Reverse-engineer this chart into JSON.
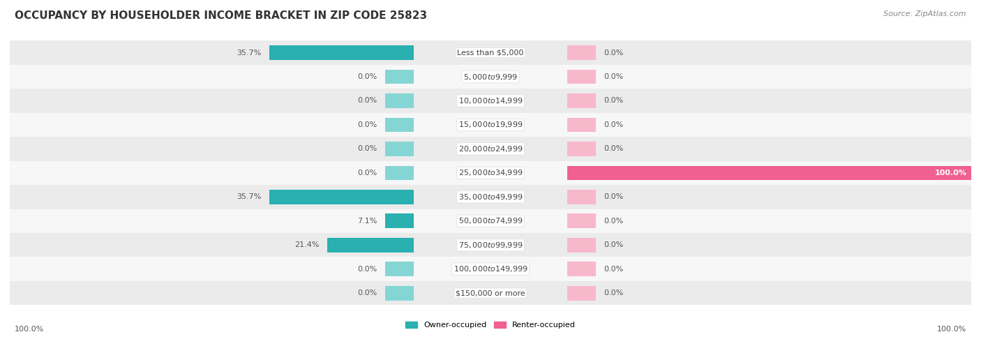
{
  "title": "OCCUPANCY BY HOUSEHOLDER INCOME BRACKET IN ZIP CODE 25823",
  "source": "Source: ZipAtlas.com",
  "categories": [
    "Less than $5,000",
    "$5,000 to $9,999",
    "$10,000 to $14,999",
    "$15,000 to $19,999",
    "$20,000 to $24,999",
    "$25,000 to $34,999",
    "$35,000 to $49,999",
    "$50,000 to $74,999",
    "$75,000 to $99,999",
    "$100,000 to $149,999",
    "$150,000 or more"
  ],
  "owner_values": [
    35.7,
    0.0,
    0.0,
    0.0,
    0.0,
    0.0,
    35.7,
    7.1,
    21.4,
    0.0,
    0.0
  ],
  "renter_values": [
    0.0,
    0.0,
    0.0,
    0.0,
    0.0,
    100.0,
    0.0,
    0.0,
    0.0,
    0.0,
    0.0
  ],
  "owner_color_dark": "#2ab0b0",
  "owner_color_light": "#85d5d5",
  "renter_color_dark": "#f06090",
  "renter_color_light": "#f8b8cc",
  "row_bg_odd": "#ebebeb",
  "row_bg_even": "#f7f7f7",
  "title_fontsize": 11,
  "source_fontsize": 8,
  "cat_fontsize": 8,
  "val_fontsize": 8,
  "legend_fontsize": 8,
  "max_value": 100.0,
  "bar_height": 0.6,
  "min_bar": 7.0
}
